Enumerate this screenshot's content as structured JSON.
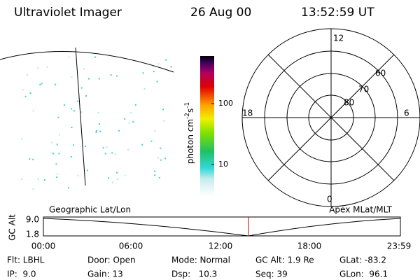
{
  "header": {
    "title": "Ultraviolet Imager",
    "date": "26 Aug 00",
    "time": "13:52:59 UT"
  },
  "colorbar": {
    "unit": "photon cm",
    "exp1": "-2",
    "unit2": "s",
    "exp2": "-1",
    "ticks": [
      "100",
      "10"
    ]
  },
  "polar": {
    "mlt": [
      "12",
      "18",
      "6",
      "0"
    ],
    "lat": [
      "60",
      "70",
      "80"
    ]
  },
  "labels": {
    "left": "Geographic Lat/Lon",
    "right": "Apex MLat/MLT"
  },
  "timeline": {
    "axis_label": "GC Alt",
    "yticks": [
      "9.0",
      "1.8"
    ],
    "xticks": [
      "00:00",
      "06:00",
      "12:00",
      "18:00",
      "23:59"
    ]
  },
  "footer": {
    "rows": [
      [
        "Flt: LBHL",
        "Door: Open",
        "Mode: Normal",
        "GC Alt: 1.9 Re",
        "GLat: -83.2"
      ],
      [
        "IP:  9.0",
        "Gain: 13",
        "Dsp:   10.3",
        "Seq: 39",
        "GLon:  96.1"
      ]
    ]
  }
}
